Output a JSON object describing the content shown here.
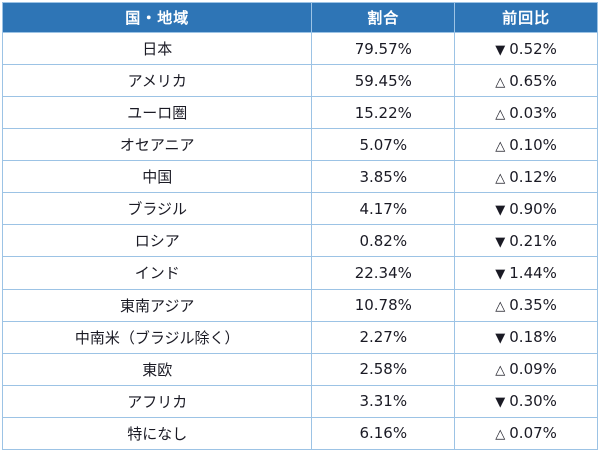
{
  "colors": {
    "header_bg": "#2E75B6",
    "header_text": "#FFFFFF",
    "border": "#9CC3E5",
    "body_text": "#1A1A24"
  },
  "table": {
    "headers": [
      "国・地域",
      "割合",
      "前回比"
    ],
    "rows": [
      {
        "region": "日本",
        "share": "79.57%",
        "change_symbol": "▼",
        "change_value": "0.52%",
        "direction": "down"
      },
      {
        "region": "アメリカ",
        "share": "59.45%",
        "change_symbol": "△",
        "change_value": "0.65%",
        "direction": "up"
      },
      {
        "region": "ユーロ圏",
        "share": "15.22%",
        "change_symbol": "△",
        "change_value": "0.03%",
        "direction": "up"
      },
      {
        "region": "オセアニア",
        "share": "5.07%",
        "change_symbol": "△",
        "change_value": "0.10%",
        "direction": "up"
      },
      {
        "region": "中国",
        "share": "3.85%",
        "change_symbol": "△",
        "change_value": "0.12%",
        "direction": "up"
      },
      {
        "region": "ブラジル",
        "share": "4.17%",
        "change_symbol": "▼",
        "change_value": "0.90%",
        "direction": "down"
      },
      {
        "region": "ロシア",
        "share": "0.82%",
        "change_symbol": "▼",
        "change_value": "0.21%",
        "direction": "down"
      },
      {
        "region": "インド",
        "share": "22.34%",
        "change_symbol": "▼",
        "change_value": "1.44%",
        "direction": "down"
      },
      {
        "region": "東南アジア",
        "share": "10.78%",
        "change_symbol": "△",
        "change_value": "0.35%",
        "direction": "up"
      },
      {
        "region": "中南米（ブラジル除く）",
        "share": "2.27%",
        "change_symbol": "▼",
        "change_value": "0.18%",
        "direction": "down"
      },
      {
        "region": "東欧",
        "share": "2.58%",
        "change_symbol": "△",
        "change_value": "0.09%",
        "direction": "up"
      },
      {
        "region": "アフリカ",
        "share": "3.31%",
        "change_symbol": "▼",
        "change_value": "0.30%",
        "direction": "down"
      },
      {
        "region": "特になし",
        "share": "6.16%",
        "change_symbol": "△",
        "change_value": "0.07%",
        "direction": "up"
      }
    ]
  }
}
